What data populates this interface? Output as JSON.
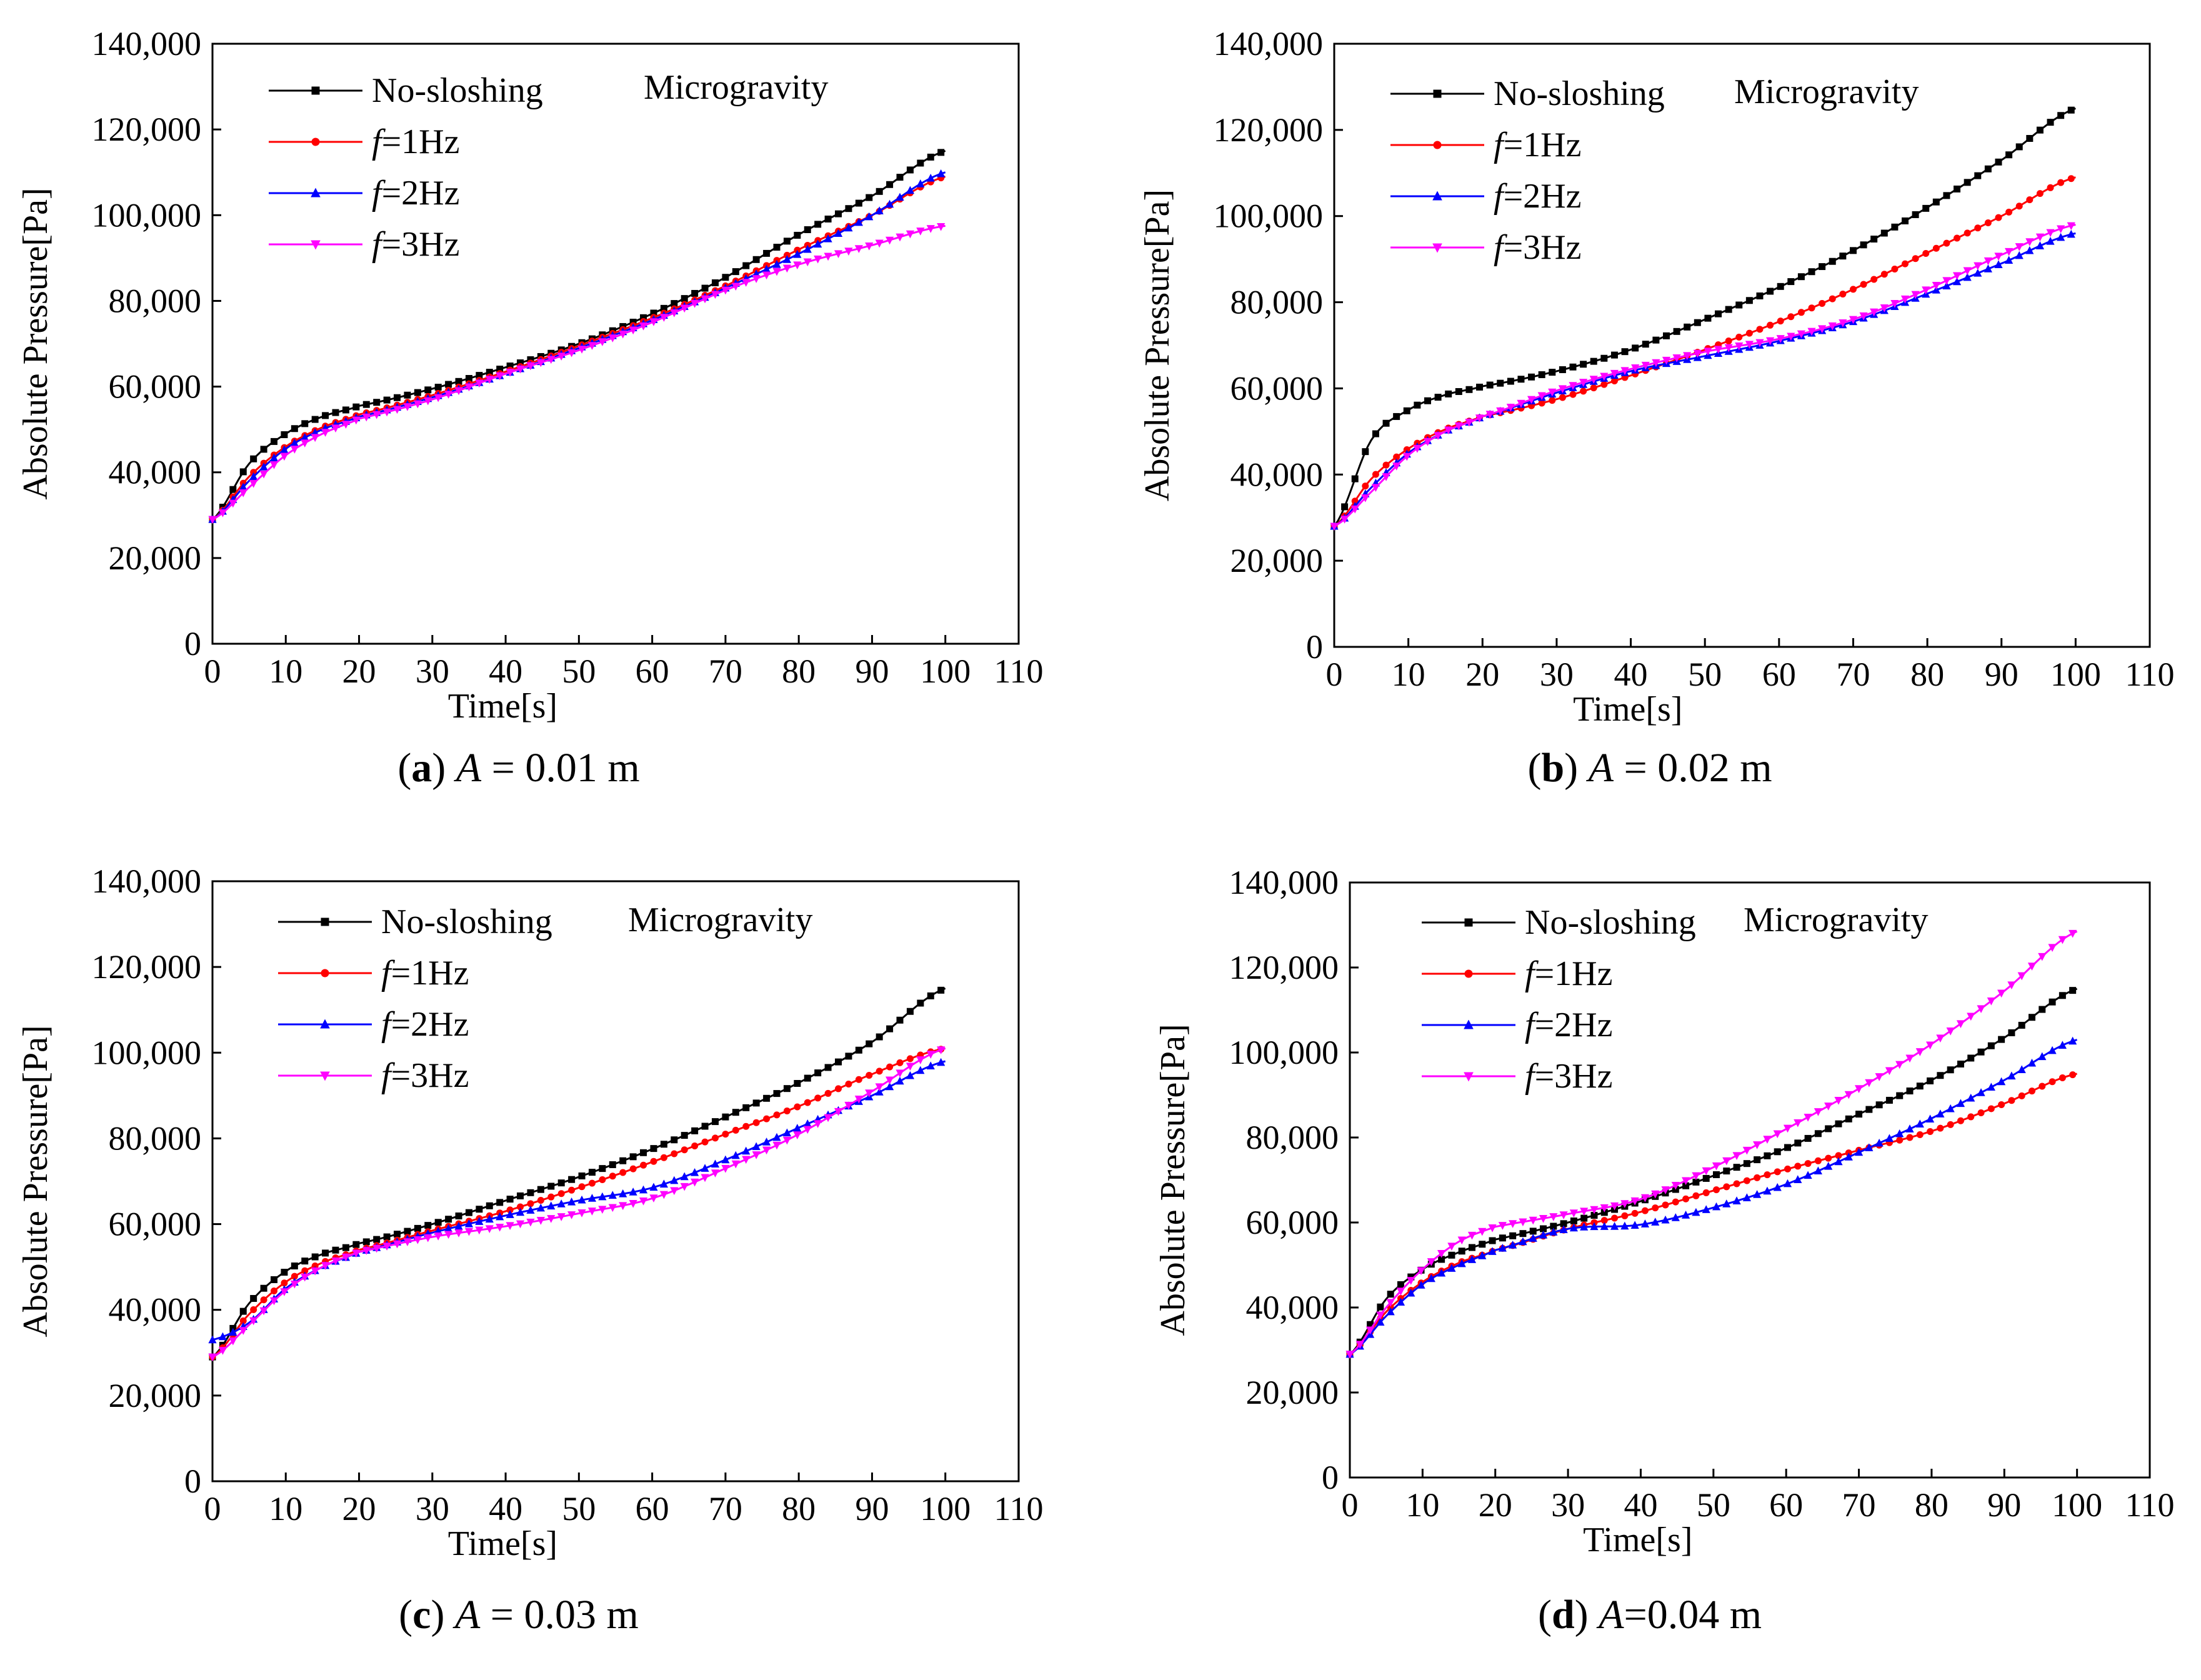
{
  "figure": {
    "colors": {
      "no_sloshing": "#000000",
      "f1": "#ff0000",
      "f2": "#0000ff",
      "f3": "#ff00ff",
      "axis": "#000000"
    },
    "panels_text": {
      "xlabel": "Time[s]",
      "ylabel": "Absolute Pressure[Pa]",
      "annotation": "Microgravity",
      "legend_prefix": "f",
      "legend": [
        "No-sloshing",
        "=1Hz",
        "=2Hz",
        "=3Hz"
      ]
    }
  },
  "chart_data": [
    {
      "type": "line",
      "panel_id": "a",
      "caption": {
        "label": "(a)",
        "var": "A",
        "rest": " = 0.01 m"
      },
      "title": "",
      "xlabel": "Time[s]",
      "ylabel": "Absolute Pressure[Pa]",
      "annotation": "Microgravity",
      "xlim": [
        0,
        110
      ],
      "ylim": [
        0,
        140000
      ],
      "xticks": [
        0,
        10,
        20,
        30,
        40,
        50,
        60,
        70,
        80,
        90,
        100,
        110
      ],
      "yticks": [
        0,
        20000,
        40000,
        60000,
        80000,
        100000,
        120000,
        140000
      ],
      "xtick_labels": [
        "0",
        "10",
        "20",
        "30",
        "40",
        "50",
        "60",
        "70",
        "80",
        "90",
        "100",
        "110"
      ],
      "ytick_labels": [
        "0",
        "20,000",
        "40,000",
        "60,000",
        "80,000",
        "100,000",
        "120,000",
        "140,000"
      ],
      "legend_position": "top-left",
      "x": [
        0,
        5,
        10,
        15,
        20,
        30,
        40,
        50,
        60,
        70,
        80,
        90,
        100
      ],
      "series": [
        {
          "name": "No-sloshing",
          "prefix": "",
          "text": "No-sloshing",
          "color": "#000000",
          "marker": "square",
          "values": [
            29000,
            42000,
            49000,
            53000,
            55500,
            59500,
            64500,
            70000,
            77000,
            85500,
            95500,
            104500,
            115000
          ]
        },
        {
          "name": "f=1Hz",
          "prefix": "f",
          "text": "=1Hz",
          "color": "#ff0000",
          "marker": "circle",
          "values": [
            29000,
            39000,
            46000,
            50500,
            53500,
            58000,
            63500,
            69500,
            76000,
            83500,
            92000,
            100000,
            109000
          ]
        },
        {
          "name": "f=2Hz",
          "prefix": "f",
          "text": "=2Hz",
          "color": "#0000ff",
          "marker": "triangle-up",
          "values": [
            29000,
            38000,
            45500,
            50000,
            53000,
            57500,
            63000,
            69000,
            75500,
            83000,
            91000,
            100000,
            110000
          ]
        },
        {
          "name": "f=3Hz",
          "prefix": "f",
          "text": "=3Hz",
          "color": "#ff00ff",
          "marker": "triangle-down",
          "values": [
            29000,
            36500,
            44000,
            49000,
            52500,
            57000,
            63000,
            68500,
            75000,
            82500,
            88500,
            93000,
            97500
          ]
        }
      ]
    },
    {
      "type": "line",
      "panel_id": "b",
      "caption": {
        "label": "(b)",
        "var": "A",
        "rest": " = 0.02 m"
      },
      "title": "",
      "xlabel": "Time[s]",
      "ylabel": "Absolute Pressure[Pa]",
      "annotation": "Microgravity",
      "xlim": [
        0,
        110
      ],
      "ylim": [
        0,
        140000
      ],
      "xticks": [
        0,
        10,
        20,
        30,
        40,
        50,
        60,
        70,
        80,
        90,
        100,
        110
      ],
      "yticks": [
        0,
        20000,
        40000,
        60000,
        80000,
        100000,
        120000,
        140000
      ],
      "xtick_labels": [
        "0",
        "10",
        "20",
        "30",
        "40",
        "50",
        "60",
        "70",
        "80",
        "90",
        "100",
        "110"
      ],
      "ytick_labels": [
        "0",
        "20,000",
        "40,000",
        "60,000",
        "80,000",
        "100,000",
        "120,000",
        "140,000"
      ],
      "legend_position": "top-left",
      "x": [
        0,
        5,
        10,
        15,
        20,
        30,
        40,
        50,
        60,
        70,
        80,
        90,
        100
      ],
      "series": [
        {
          "name": "No-sloshing",
          "prefix": "",
          "text": "No-sloshing",
          "color": "#000000",
          "marker": "square",
          "values": [
            28000,
            48000,
            55000,
            58500,
            60500,
            64000,
            69000,
            76000,
            83500,
            92000,
            102000,
            113000,
            125000
          ]
        },
        {
          "name": "f=1Hz",
          "prefix": "f",
          "text": "=1Hz",
          "color": "#ff0000",
          "marker": "circle",
          "values": [
            28000,
            39000,
            46000,
            50500,
            53500,
            57500,
            63000,
            69000,
            75500,
            83000,
            91500,
            100000,
            109000
          ]
        },
        {
          "name": "f=2Hz",
          "prefix": "f",
          "text": "=2Hz",
          "color": "#0000ff",
          "marker": "triangle-up",
          "values": [
            28000,
            37000,
            45000,
            50000,
            53500,
            59000,
            64000,
            67500,
            71000,
            75500,
            82000,
            89000,
            96000
          ]
        },
        {
          "name": "f=3Hz",
          "prefix": "f",
          "text": "=3Hz",
          "color": "#ff00ff",
          "marker": "triangle-down",
          "values": [
            28000,
            36000,
            44500,
            50000,
            53500,
            59500,
            64500,
            68500,
            71500,
            76000,
            83000,
            91000,
            98000
          ]
        }
      ]
    },
    {
      "type": "line",
      "panel_id": "c",
      "caption": {
        "label": "(c)",
        "var": "A",
        "rest": " = 0.03 m"
      },
      "title": "",
      "xlabel": "Time[s]",
      "ylabel": "Absolute Pressure[Pa]",
      "annotation": "Microgravity",
      "xlim": [
        0,
        110
      ],
      "ylim": [
        0,
        140000
      ],
      "xticks": [
        0,
        10,
        20,
        30,
        40,
        50,
        60,
        70,
        80,
        90,
        100,
        110
      ],
      "yticks": [
        0,
        20000,
        40000,
        60000,
        80000,
        100000,
        120000,
        140000
      ],
      "xtick_labels": [
        "0",
        "10",
        "20",
        "30",
        "40",
        "50",
        "60",
        "70",
        "80",
        "90",
        "100",
        "110"
      ],
      "ytick_labels": [
        "0",
        "20,000",
        "40,000",
        "60,000",
        "80,000",
        "100,000",
        "120,000",
        "140,000"
      ],
      "legend_position": "top-left",
      "x": [
        0,
        5,
        10,
        15,
        20,
        30,
        40,
        50,
        60,
        70,
        80,
        90,
        100
      ],
      "series": [
        {
          "name": "No-sloshing",
          "prefix": "",
          "text": "No-sloshing",
          "color": "#000000",
          "marker": "square",
          "values": [
            29000,
            41500,
            49000,
            53000,
            55500,
            60000,
            65500,
            71000,
            77500,
            85000,
            93000,
            102500,
            115000
          ]
        },
        {
          "name": "f=1Hz",
          "prefix": "f",
          "text": "=1Hz",
          "color": "#ff0000",
          "marker": "circle",
          "values": [
            29000,
            39000,
            46500,
            51000,
            54000,
            58500,
            63000,
            68500,
            74500,
            81000,
            87500,
            95000,
            101000
          ]
        },
        {
          "name": "f=2Hz",
          "prefix": "f",
          "text": "=2Hz",
          "color": "#0000ff",
          "marker": "triangle-up",
          "values": [
            33000,
            37000,
            45000,
            50000,
            53500,
            58000,
            62000,
            65500,
            68500,
            75000,
            82500,
            90000,
            98000
          ]
        },
        {
          "name": "f=3Hz",
          "prefix": "f",
          "text": "=3Hz",
          "color": "#ff00ff",
          "marker": "triangle-down",
          "values": [
            29000,
            36500,
            44500,
            50000,
            53500,
            57000,
            59500,
            62500,
            66000,
            73000,
            81000,
            91000,
            101000
          ]
        }
      ]
    },
    {
      "type": "line",
      "panel_id": "d",
      "caption": {
        "label": "(d)",
        "var": "A",
        "rest": "=0.04 m"
      },
      "title": "",
      "xlabel": "Time[s]",
      "ylabel": "Absolute Pressure[Pa]",
      "annotation": "Microgravity",
      "xlim": [
        0,
        110
      ],
      "ylim": [
        0,
        140000
      ],
      "xticks": [
        0,
        10,
        20,
        30,
        40,
        50,
        60,
        70,
        80,
        90,
        100,
        110
      ],
      "yticks": [
        0,
        20000,
        40000,
        60000,
        80000,
        100000,
        120000,
        140000
      ],
      "xtick_labels": [
        "0",
        "10",
        "20",
        "30",
        "40",
        "50",
        "60",
        "70",
        "80",
        "90",
        "100",
        "110"
      ],
      "ytick_labels": [
        "0",
        "20,000",
        "40,000",
        "60,000",
        "80,000",
        "100,000",
        "120,000",
        "140,000"
      ],
      "legend_position": "top-left",
      "x": [
        0,
        5,
        10,
        15,
        20,
        30,
        40,
        50,
        60,
        70,
        80,
        90,
        100
      ],
      "series": [
        {
          "name": "No-sloshing",
          "prefix": "",
          "text": "No-sloshing",
          "color": "#000000",
          "marker": "square",
          "values": [
            29000,
            42000,
            49000,
            53000,
            56000,
            60000,
            65000,
            71000,
            77500,
            85500,
            93500,
            103500,
            115000
          ]
        },
        {
          "name": "f=1Hz",
          "prefix": "f",
          "text": "=1Hz",
          "color": "#ff0000",
          "marker": "circle",
          "values": [
            29000,
            39000,
            46000,
            50500,
            53500,
            58500,
            62500,
            67500,
            72500,
            77000,
            81500,
            88000,
            95000
          ]
        },
        {
          "name": "f=2Hz",
          "prefix": "f",
          "text": "=2Hz",
          "color": "#0000ff",
          "marker": "triangle-up",
          "values": [
            29000,
            38000,
            45500,
            50000,
            53500,
            58500,
            59500,
            63500,
            69000,
            76500,
            84500,
            93500,
            103000
          ]
        },
        {
          "name": "f=3Hz",
          "prefix": "f",
          "text": "=3Hz",
          "color": "#ff00ff",
          "marker": "triangle-down",
          "values": [
            29000,
            40000,
            49000,
            55500,
            59000,
            62000,
            65500,
            73000,
            82000,
            91500,
            102000,
            114500,
            128500
          ]
        }
      ]
    }
  ]
}
